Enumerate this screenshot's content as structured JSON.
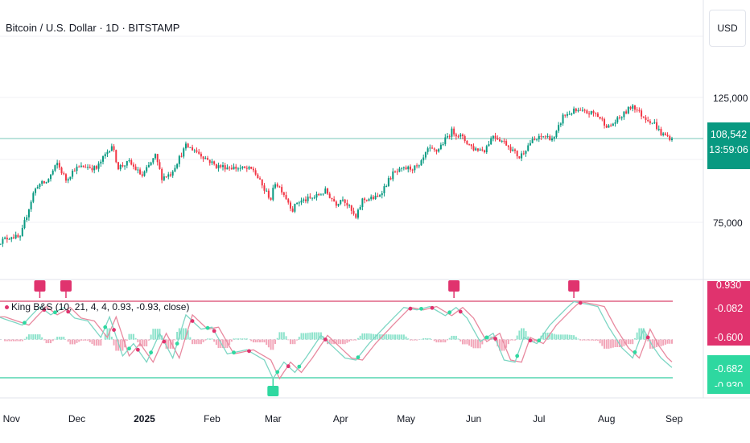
{
  "header": {
    "title": "Bitcoin / U.S. Dollar · 1D · BITSTAMP"
  },
  "currency_button": {
    "label": "USD"
  },
  "indicator": {
    "label": "King B&S (10, 21, 4, 4, 0.93, -0.93, close)"
  },
  "price_axis": {
    "labels": [
      "125,000",
      "75,000"
    ]
  },
  "price_tag": {
    "price": "108,542",
    "countdown": "13:59:06"
  },
  "indicator_axis": {
    "top_partial": "0.930",
    "upper_tag": "-0.082",
    "mid_tag": "-0.600",
    "lower_tag": "-0.682",
    "bottom_partial": "-0.930"
  },
  "time_axis": {
    "labels": [
      "Nov",
      "Dec",
      "2025",
      "Feb",
      "Mar",
      "Apr",
      "May",
      "Jun",
      "Jul",
      "Aug",
      "Sep"
    ]
  },
  "colors": {
    "up": "#089981",
    "down": "#f23645",
    "signal_sell": "#e0336e",
    "signal_buy": "#2ed8a0",
    "line_fast": "#7ed6c4",
    "line_slow": "#e8899f",
    "level_upper": "#e88aa3",
    "level_lower": "#7fe0c4"
  },
  "chart_data": [
    {
      "type": "candlestick",
      "title": "Bitcoin / U.S. Dollar · 1D · BITSTAMP",
      "y_unit": "USD",
      "ylim": [
        58000,
        140000
      ],
      "y_ticks": [
        125000,
        75000
      ],
      "x_ticks": [
        "Nov",
        "Dec",
        "2025",
        "Feb",
        "Mar",
        "Apr",
        "May",
        "Jun",
        "Jul",
        "Aug",
        "Sep"
      ],
      "x_range": [
        "2024-10-26",
        "2025-08-31"
      ],
      "last_price": 108542,
      "countdown": "13:59:06",
      "close_path": [
        [
          "2024-10-26",
          67000
        ],
        [
          "2024-11-01",
          69500
        ],
        [
          "2024-11-05",
          68500
        ],
        [
          "2024-11-07",
          75000
        ],
        [
          "2024-11-11",
          86500
        ],
        [
          "2024-11-13",
          90000
        ],
        [
          "2024-11-17",
          91000
        ],
        [
          "2024-11-22",
          98500
        ],
        [
          "2024-11-26",
          92000
        ],
        [
          "2024-11-30",
          96500
        ],
        [
          "2024-12-05",
          97500
        ],
        [
          "2024-12-10",
          96500
        ],
        [
          "2024-12-17",
          106000
        ],
        [
          "2024-12-20",
          97000
        ],
        [
          "2024-12-25",
          99000
        ],
        [
          "2024-12-31",
          93500
        ],
        [
          "2025-01-06",
          101500
        ],
        [
          "2025-01-09",
          93000
        ],
        [
          "2025-01-13",
          94500
        ],
        [
          "2025-01-20",
          105500
        ],
        [
          "2025-01-24",
          104000
        ],
        [
          "2025-01-27",
          102000
        ],
        [
          "2025-02-03",
          97500
        ],
        [
          "2025-02-10",
          97000
        ],
        [
          "2025-02-20",
          96000
        ],
        [
          "2025-02-25",
          88000
        ],
        [
          "2025-02-28",
          84500
        ],
        [
          "2025-03-02",
          91000
        ],
        [
          "2025-03-05",
          88000
        ],
        [
          "2025-03-10",
          80000
        ],
        [
          "2025-03-12",
          83000
        ],
        [
          "2025-03-20",
          85000
        ],
        [
          "2025-03-25",
          87500
        ],
        [
          "2025-03-30",
          82500
        ],
        [
          "2025-04-02",
          85000
        ],
        [
          "2025-04-08",
          76500
        ],
        [
          "2025-04-11",
          84000
        ],
        [
          "2025-04-18",
          85000
        ],
        [
          "2025-04-25",
          94500
        ],
        [
          "2025-05-01",
          96500
        ],
        [
          "2025-05-07",
          97000
        ],
        [
          "2025-05-11",
          104000
        ],
        [
          "2025-05-15",
          103500
        ],
        [
          "2025-05-22",
          111500
        ],
        [
          "2025-05-26",
          109500
        ],
        [
          "2025-06-01",
          104500
        ],
        [
          "2025-06-06",
          104000
        ],
        [
          "2025-06-10",
          110000
        ],
        [
          "2025-06-16",
          106500
        ],
        [
          "2025-06-22",
          101000
        ],
        [
          "2025-06-27",
          107000
        ],
        [
          "2025-07-03",
          109500
        ],
        [
          "2025-07-08",
          108500
        ],
        [
          "2025-07-12",
          117500
        ],
        [
          "2025-07-17",
          119500
        ],
        [
          "2025-07-22",
          119000
        ],
        [
          "2025-07-27",
          118500
        ],
        [
          "2025-08-02",
          113000
        ],
        [
          "2025-08-08",
          117500
        ],
        [
          "2025-08-13",
          122000
        ],
        [
          "2025-08-17",
          118000
        ],
        [
          "2025-08-23",
          114500
        ],
        [
          "2025-08-26",
          110500
        ],
        [
          "2025-08-31",
          108542
        ]
      ]
    },
    {
      "type": "line",
      "title": "King B&S (10, 21, 4, 4, 0.93, -0.93, close)",
      "ylim": [
        -1.05,
        1.05
      ],
      "levels": {
        "upper": 0.93,
        "lower": -0.93
      },
      "current_values": {
        "fast": -0.682,
        "slow": -0.6,
        "other": -0.082
      },
      "series": [
        {
          "name": "",
          "points": [
            [
              "2024-10-26",
              0.55
            ],
            [
              "2024-11-06",
              0.35
            ],
            [
              "2024-11-14",
              0.8
            ],
            [
              "2024-11-19",
              0.6
            ],
            [
              "2024-11-25",
              0.78
            ],
            [
              "2024-11-30",
              0.52
            ],
            [
              "2024-12-06",
              0.45
            ],
            [
              "2024-12-12",
              0.05
            ],
            [
              "2024-12-16",
              0.55
            ],
            [
              "2024-12-22",
              -0.4
            ],
            [
              "2024-12-27",
              -0.1
            ],
            [
              "2025-01-02",
              -0.55
            ],
            [
              "2025-01-08",
              0.15
            ],
            [
              "2025-01-14",
              -0.45
            ],
            [
              "2025-01-20",
              0.6
            ],
            [
              "2025-01-27",
              0.25
            ],
            [
              "2025-02-01",
              0.3
            ],
            [
              "2025-02-08",
              -0.35
            ],
            [
              "2025-02-17",
              -0.25
            ],
            [
              "2025-02-25",
              -0.5
            ],
            [
              "2025-03-01",
              -0.95
            ],
            [
              "2025-03-06",
              -0.55
            ],
            [
              "2025-03-11",
              -0.8
            ],
            [
              "2025-03-16",
              -0.45
            ],
            [
              "2025-03-23",
              0.1
            ],
            [
              "2025-03-29",
              -0.2
            ],
            [
              "2025-04-03",
              -0.45
            ],
            [
              "2025-04-08",
              -0.5
            ],
            [
              "2025-04-14",
              -0.1
            ],
            [
              "2025-04-22",
              0.35
            ],
            [
              "2025-04-30",
              0.78
            ],
            [
              "2025-05-06",
              0.72
            ],
            [
              "2025-05-12",
              0.8
            ],
            [
              "2025-05-19",
              0.58
            ],
            [
              "2025-05-24",
              0.78
            ],
            [
              "2025-05-29",
              0.52
            ],
            [
              "2025-06-04",
              -0.05
            ],
            [
              "2025-06-10",
              0.15
            ],
            [
              "2025-06-15",
              -0.5
            ],
            [
              "2025-06-20",
              -0.55
            ],
            [
              "2025-06-24",
              0.05
            ],
            [
              "2025-06-30",
              -0.1
            ],
            [
              "2025-07-06",
              0.35
            ],
            [
              "2025-07-14",
              0.78
            ],
            [
              "2025-07-17",
              0.92
            ],
            [
              "2025-07-24",
              0.85
            ],
            [
              "2025-07-28",
              0.8
            ],
            [
              "2025-08-02",
              0.3
            ],
            [
              "2025-08-08",
              -0.2
            ],
            [
              "2025-08-13",
              -0.45
            ],
            [
              "2025-08-18",
              0.25
            ],
            [
              "2025-08-22",
              -0.15
            ],
            [
              "2025-08-26",
              -0.45
            ],
            [
              "2025-08-31",
              -0.682
            ]
          ]
        }
      ]
    }
  ]
}
